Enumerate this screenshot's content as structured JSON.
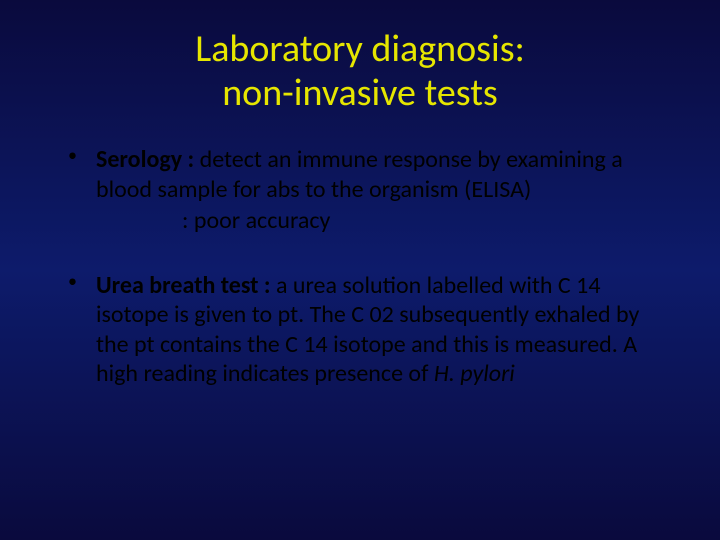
{
  "slide": {
    "background_gradient": [
      "#0a0a3d",
      "#0d1b6b",
      "#0a0a3d"
    ],
    "title_color": "#e6e600",
    "body_color": "#000000",
    "title_fontsize": 38,
    "body_fontsize": 24,
    "title": {
      "line1": "Laboratory diagnosis:",
      "line2": "non-invasive tests"
    },
    "bullets": [
      {
        "lead": "Serology :",
        "text": " detect an immune response by examining a blood sample for abs to the organism (ELISA)",
        "sub": ": poor accuracy"
      },
      {
        "lead": "Urea breath test :",
        "text": " a urea solution labelled with C 14 isotope is given to pt. The C 02 subsequently exhaled by the pt contains the C 14 isotope and this is measured. A high reading indicates presence of ",
        "italic_trail": "H. pylori"
      }
    ]
  }
}
